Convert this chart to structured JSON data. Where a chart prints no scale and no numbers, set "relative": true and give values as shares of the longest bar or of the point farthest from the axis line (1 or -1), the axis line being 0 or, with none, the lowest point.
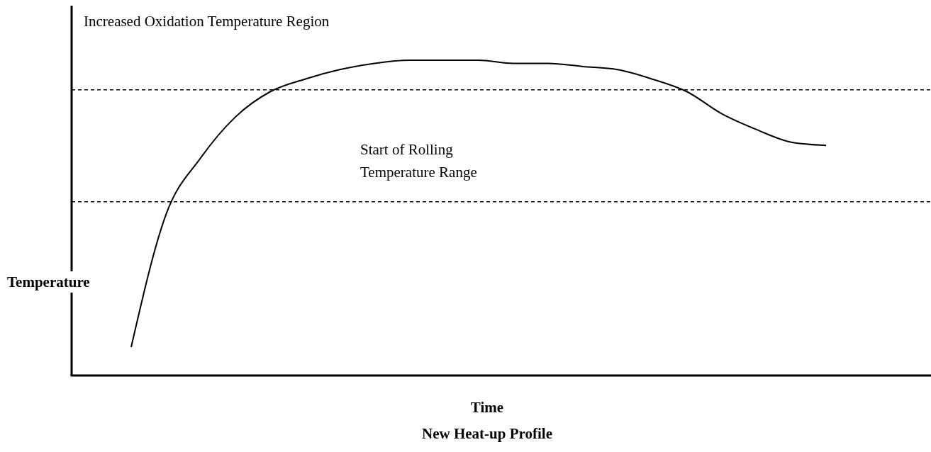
{
  "chart_data": {
    "type": "line",
    "title": "New Heat-up Profile",
    "xlabel": "Time",
    "ylabel": "Temperature",
    "relative": true,
    "line_style": "solid",
    "categories": [
      null,
      null,
      null,
      null,
      null,
      null,
      null,
      null,
      null,
      null,
      null,
      null,
      null,
      null,
      null,
      null,
      null,
      null,
      null,
      null,
      null
    ],
    "series": [
      {
        "color": "#000000",
        "values": [
          0.09,
          0.51,
          0.69,
          0.82,
          0.9,
          0.94,
          0.97,
          0.99,
          1.0,
          1.0,
          1.0,
          0.99,
          0.99,
          0.98,
          0.97,
          0.94,
          0.9,
          0.83,
          0.78,
          0.74,
          0.73
        ]
      }
    ],
    "ref_lines": [
      {
        "axis": "y",
        "value": 0.906,
        "line_style": "dashed",
        "color": "#000000"
      },
      {
        "axis": "y",
        "value": 0.551,
        "line_style": "dashed",
        "color": "#000000"
      }
    ],
    "annotations": [
      "Increased Oxidation Temperature Region",
      "Start of Rolling\nTemperature Range"
    ]
  }
}
